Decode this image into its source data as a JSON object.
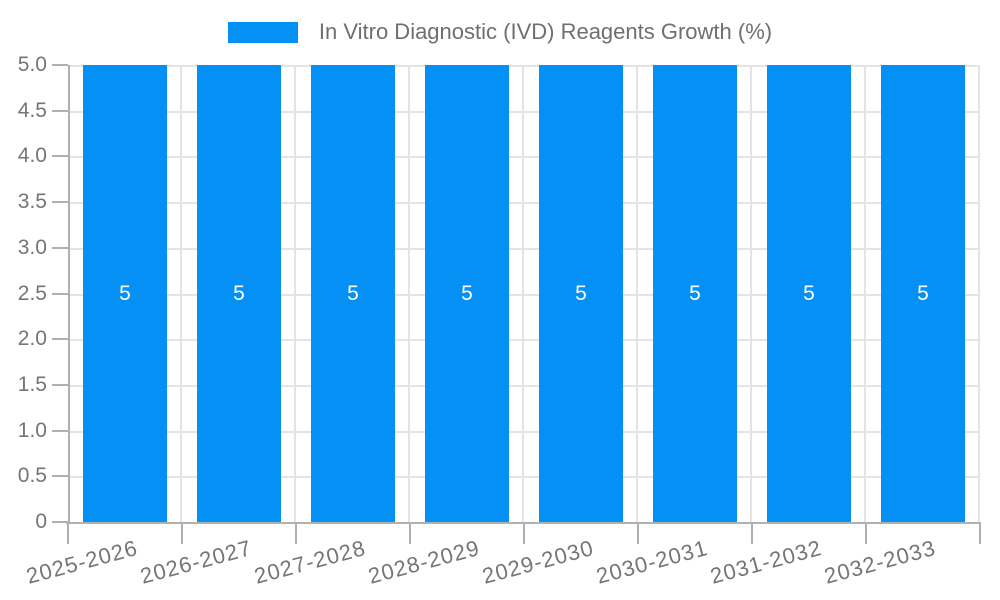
{
  "chart_data": {
    "type": "bar",
    "title": "",
    "legend": "In Vitro Diagnostic (IVD) Reagents Growth (%)",
    "legend_position": "top-center",
    "categories": [
      "2025-2026",
      "2026-2027",
      "2027-2028",
      "2028-2029",
      "2029-2030",
      "2030-2031",
      "2031-2032",
      "2032-2033"
    ],
    "series": [
      {
        "name": "In Vitro Diagnostic (IVD) Reagents Growth (%)",
        "values": [
          5,
          5,
          5,
          5,
          5,
          5,
          5,
          5
        ],
        "data_labels": [
          "5",
          "5",
          "5",
          "5",
          "5",
          "5",
          "5",
          "5"
        ]
      }
    ],
    "xlabel": "",
    "ylabel": "",
    "ylim": [
      0,
      5
    ],
    "ytick_step": 0.5,
    "ytick_labels": [
      "5.0",
      "4.5",
      "4.0",
      "3.5",
      "3.0",
      "2.5",
      "2.0",
      "1.5",
      "1.0",
      "0.5",
      "0"
    ],
    "grid": "on",
    "colors": {
      "bar": "#0590F5",
      "grid": "#e4e4e4",
      "axis": "#b0b0b0",
      "tick_text": "#757575",
      "legend_text": "#6f6f6f",
      "value_label": "#ffffff",
      "background": "#ffffff"
    }
  }
}
